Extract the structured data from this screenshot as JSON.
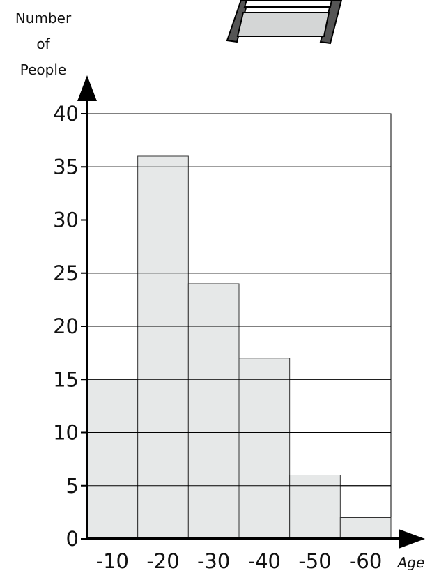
{
  "chart_data": {
    "type": "bar",
    "categories": [
      "-10",
      "-20",
      "-30",
      "-40",
      "-50",
      "-60"
    ],
    "values": [
      15,
      36,
      24,
      17,
      6,
      2
    ],
    "title": "",
    "ylabel": [
      "Number",
      "of",
      "People"
    ],
    "xlabel": "Age",
    "ylim": [
      0,
      40
    ],
    "yticks": [
      0,
      5,
      10,
      15,
      20,
      25,
      30,
      35,
      40
    ],
    "grid": true,
    "colors": {
      "bar_fill": "#e6e8e8",
      "bar_stroke": "#333333",
      "axis": "#000000",
      "grid": "#000000",
      "ladder_rail": "#555555",
      "ladder_rung": "#d4d6d6"
    }
  }
}
